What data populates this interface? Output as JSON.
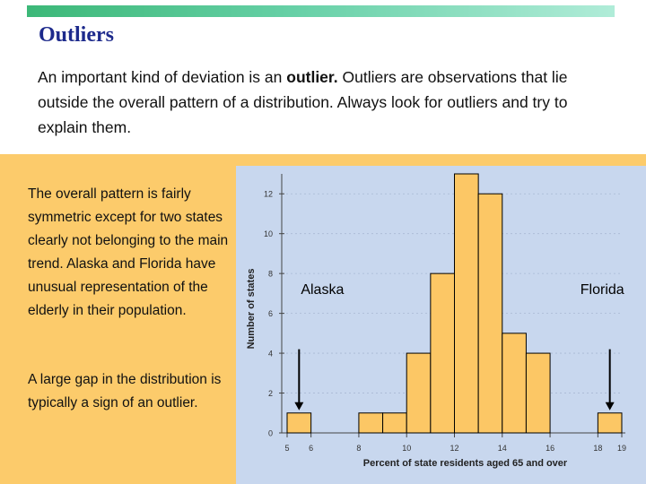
{
  "slide": {
    "title": "Outliers",
    "intro_before": "An important kind of deviation is an ",
    "intro_bold": "outlier.",
    "intro_after": " Outliers are observations that lie outside the overall pattern of a distribution. Always look for outliers and try to explain them.",
    "side_text_1": "The overall pattern is fairly symmetric except for two states clearly not belonging to the main trend. Alaska and Florida have unusual representation of the elderly in their population.",
    "side_text_2": "A large gap in the distribution is typically a sign of an outlier."
  },
  "colors": {
    "title": "#1d2a8c",
    "panel": "#fccb6b",
    "plot_background": "#c8d7ee",
    "bar_fill": "#fcc765",
    "bar_stroke": "#000000"
  },
  "chart_data": {
    "type": "bar",
    "title": "",
    "xlabel": "Percent of state residents aged 65 and over",
    "ylabel": "Number of states",
    "bin_width": 1,
    "bins": [
      {
        "start": 5,
        "value": 1
      },
      {
        "start": 8,
        "value": 1
      },
      {
        "start": 9,
        "value": 1
      },
      {
        "start": 10,
        "value": 4
      },
      {
        "start": 11,
        "value": 8
      },
      {
        "start": 12,
        "value": 13
      },
      {
        "start": 13,
        "value": 12
      },
      {
        "start": 14,
        "value": 5
      },
      {
        "start": 15,
        "value": 4
      },
      {
        "start": 18,
        "value": 1
      }
    ],
    "xlim": [
      5,
      19
    ],
    "ylim": [
      0,
      13
    ],
    "x_ticks": [
      "5",
      "6",
      "8",
      "10",
      "12",
      "14",
      "16",
      "18",
      "19"
    ],
    "x_tick_values": [
      5,
      6,
      8,
      10,
      12,
      14,
      16,
      18,
      19
    ],
    "y_ticks": [
      "0",
      "2",
      "4",
      "6",
      "8",
      "10",
      "12"
    ],
    "y_tick_values": [
      0,
      2,
      4,
      6,
      8,
      10,
      12
    ],
    "annotations": [
      {
        "label": "Alaska",
        "x": 5.5,
        "value": 1
      },
      {
        "label": "Florida",
        "x": 18.5,
        "value": 1
      }
    ]
  }
}
